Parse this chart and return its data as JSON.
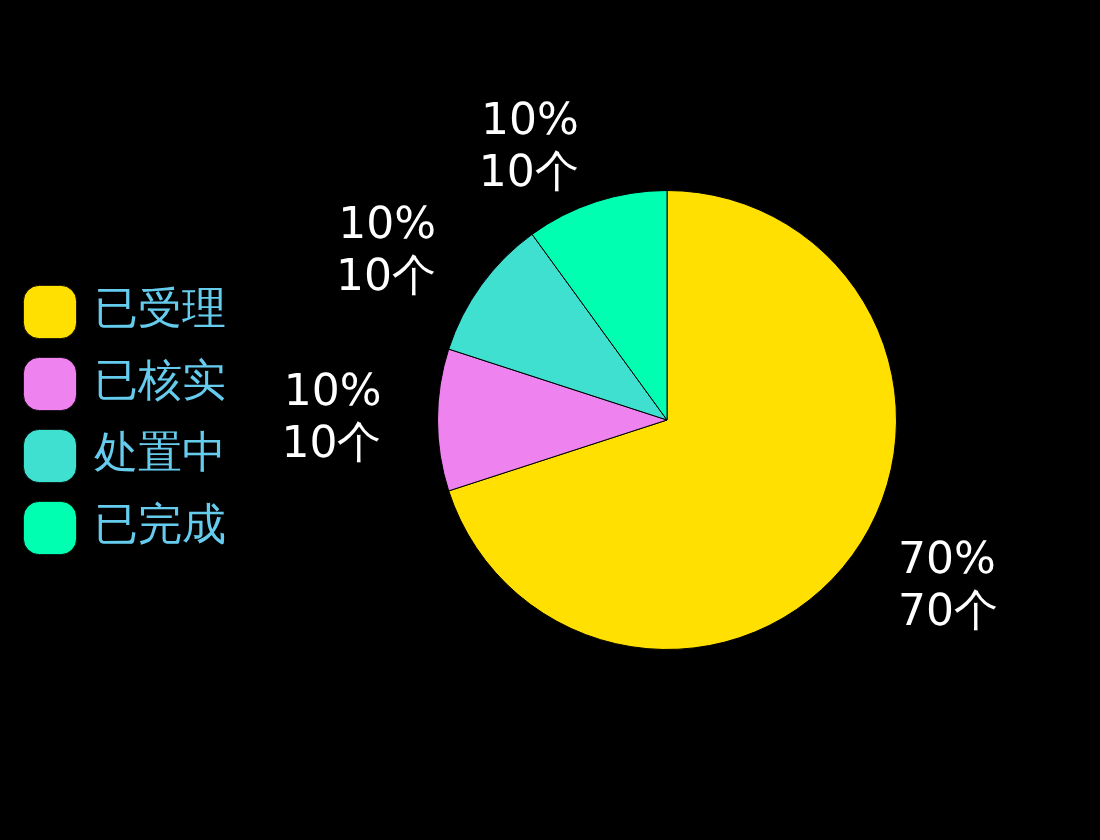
{
  "chart_data": {
    "type": "pie",
    "categories": [
      "已受理",
      "已核实",
      "处置中",
      "已完成"
    ],
    "values": [
      70,
      10,
      10,
      10
    ],
    "colors": [
      "#ffe000",
      "#ee82ee",
      "#40e0d0",
      "#00ffb0"
    ],
    "value_labels": [
      "70%\n70个",
      "10%\n10个",
      "10%\n10个",
      "10%\n10个"
    ],
    "legend": "left"
  }
}
